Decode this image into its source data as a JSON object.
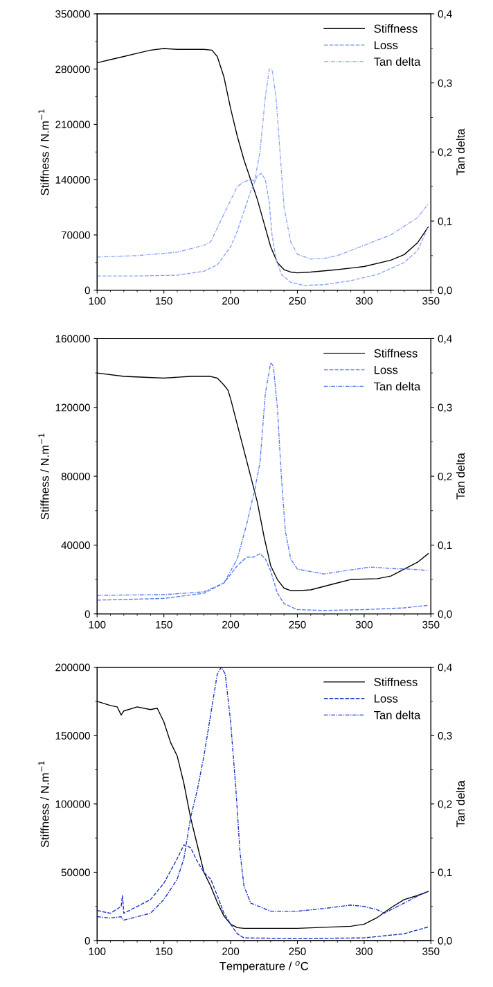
{
  "chart_data": [
    {
      "type": "line",
      "ylabel": "Stiffness / N.m$^{−1}$",
      "y2label": "Tan delta",
      "xlim": [
        100,
        350
      ],
      "xticks": [
        100,
        150,
        200,
        250,
        300,
        350
      ],
      "ylim": [
        0,
        350000
      ],
      "yticks": [
        0,
        70000,
        140000,
        210000,
        280000,
        350000
      ],
      "y2lim": [
        0,
        0.4
      ],
      "y2ticks": [
        {
          "value": 0,
          "label": "0,0"
        },
        {
          "value": 0.1,
          "label": "0,1"
        },
        {
          "value": 0.2,
          "label": "0,2"
        },
        {
          "value": 0.3,
          "label": "0,3"
        },
        {
          "value": 0.4,
          "label": "0,4"
        }
      ],
      "legend": "top right",
      "grid": false,
      "series": [
        {
          "name": "Stiffness",
          "color": "#000000",
          "line_style": "solid",
          "x": [
            100,
            110,
            120,
            130,
            140,
            150,
            160,
            170,
            180,
            186,
            190,
            195,
            200,
            205,
            210,
            215,
            220,
            225,
            230,
            235,
            240,
            245,
            250,
            260,
            280,
            300,
            320,
            330,
            340,
            348
          ],
          "values": [
            288000,
            292000,
            296000,
            300000,
            304000,
            306000,
            305000,
            305000,
            305000,
            304000,
            296000,
            270000,
            230000,
            195000,
            165000,
            140000,
            115000,
            85000,
            55000,
            35000,
            26000,
            23000,
            22000,
            23000,
            26000,
            30000,
            38000,
            45000,
            60000,
            80000
          ]
        },
        {
          "name": "Loss",
          "color": "#8ea4f5",
          "line_style": "dashed",
          "x": [
            100,
            130,
            160,
            180,
            190,
            200,
            205,
            210,
            215,
            220,
            223,
            226,
            229,
            231,
            234,
            238,
            245,
            255,
            270,
            290,
            310,
            330,
            340,
            348
          ],
          "values": [
            18000,
            18000,
            19000,
            24000,
            32000,
            55000,
            75000,
            100000,
            125000,
            145000,
            148000,
            140000,
            110000,
            70000,
            40000,
            20000,
            10000,
            6000,
            7000,
            12000,
            20000,
            35000,
            50000,
            80000
          ]
        },
        {
          "name": "Tan delta",
          "color": "#8ea4f5",
          "line_style": "dashdot",
          "axis": "y2",
          "x": [
            100,
            130,
            160,
            180,
            185,
            190,
            195,
            200,
            205,
            210,
            215,
            218,
            222,
            226,
            229,
            231,
            234,
            237,
            240,
            245,
            250,
            260,
            270,
            280,
            300,
            320,
            340,
            348
          ],
          "values": [
            0.048,
            0.05,
            0.055,
            0.065,
            0.07,
            0.09,
            0.11,
            0.13,
            0.15,
            0.157,
            0.16,
            0.158,
            0.2,
            0.28,
            0.32,
            0.32,
            0.28,
            0.2,
            0.12,
            0.07,
            0.052,
            0.045,
            0.046,
            0.05,
            0.065,
            0.08,
            0.105,
            0.125
          ]
        }
      ]
    },
    {
      "type": "line",
      "ylabel": "Stiffness / N.m$^{−1}$",
      "y2label": "Tan delta",
      "xlim": [
        100,
        350
      ],
      "xticks": [
        100,
        150,
        200,
        250,
        300,
        350
      ],
      "ylim": [
        0,
        160000
      ],
      "yticks": [
        0,
        40000,
        80000,
        120000,
        160000
      ],
      "y2lim": [
        0,
        0.4
      ],
      "y2ticks": [
        {
          "value": 0,
          "label": "0,0"
        },
        {
          "value": 0.1,
          "label": "0,1"
        },
        {
          "value": 0.2,
          "label": "0,2"
        },
        {
          "value": 0.3,
          "label": "0,3"
        },
        {
          "value": 0.4,
          "label": "0,4"
        }
      ],
      "legend": "top right",
      "grid": false,
      "series": [
        {
          "name": "Stiffness",
          "color": "#000000",
          "line_style": "solid",
          "x": [
            100,
            120,
            150,
            170,
            185,
            190,
            195,
            198,
            200,
            205,
            210,
            215,
            220,
            225,
            230,
            235,
            240,
            245,
            250,
            260,
            280,
            290,
            310,
            320,
            330,
            340,
            348
          ],
          "values": [
            140000,
            138000,
            137000,
            138000,
            138000,
            137000,
            133000,
            130000,
            125000,
            110000,
            95000,
            80000,
            65000,
            45000,
            28000,
            20000,
            15000,
            13500,
            13500,
            14000,
            18000,
            20000,
            20500,
            22000,
            26000,
            30000,
            35000
          ]
        },
        {
          "name": "Loss",
          "color": "#5a7af0",
          "line_style": "dashed",
          "x": [
            100,
            150,
            180,
            195,
            205,
            212,
            217,
            222,
            226,
            230,
            235,
            240,
            250,
            270,
            300,
            330,
            348
          ],
          "values": [
            8000,
            9000,
            12000,
            18000,
            28000,
            33000,
            33000,
            35000,
            32000,
            25000,
            12000,
            6000,
            2500,
            2000,
            2500,
            3500,
            5000
          ]
        },
        {
          "name": "Tan delta",
          "color": "#5a7af0",
          "line_style": "dashdot",
          "axis": "y2",
          "x": [
            100,
            150,
            180,
            195,
            205,
            212,
            218,
            222,
            226,
            230,
            232,
            235,
            238,
            241,
            245,
            250,
            270,
            290,
            305,
            320,
            335,
            348
          ],
          "values": [
            0.027,
            0.028,
            0.032,
            0.045,
            0.08,
            0.13,
            0.18,
            0.22,
            0.32,
            0.365,
            0.36,
            0.3,
            0.2,
            0.12,
            0.08,
            0.065,
            0.058,
            0.064,
            0.068,
            0.066,
            0.065,
            0.063
          ]
        }
      ]
    },
    {
      "type": "line",
      "xlabel": "Temperature / $^{o}$C",
      "ylabel": "Stiffness / N.m$^{−1}$",
      "y2label": "Tan delta",
      "xlim": [
        100,
        350
      ],
      "xticks": [
        100,
        150,
        200,
        250,
        300,
        350
      ],
      "ylim": [
        0,
        200000
      ],
      "yticks": [
        0,
        50000,
        100000,
        150000,
        200000
      ],
      "y2lim": [
        0,
        0.4
      ],
      "y2ticks": [
        {
          "value": 0,
          "label": "0,0"
        },
        {
          "value": 0.1,
          "label": "0,1"
        },
        {
          "value": 0.2,
          "label": "0,2"
        },
        {
          "value": 0.3,
          "label": "0,3"
        },
        {
          "value": 0.4,
          "label": "0,4"
        }
      ],
      "legend": "top right",
      "grid": false,
      "series": [
        {
          "name": "Stiffness",
          "color": "#000000",
          "line_style": "solid",
          "x": [
            100,
            110,
            115,
            118,
            120,
            130,
            140,
            145,
            150,
            155,
            160,
            165,
            170,
            175,
            180,
            185,
            190,
            195,
            200,
            205,
            210,
            250,
            290,
            300,
            310,
            320,
            330,
            340,
            348
          ],
          "values": [
            175000,
            172000,
            171000,
            165000,
            168000,
            171000,
            169000,
            170000,
            160000,
            145000,
            135000,
            115000,
            90000,
            70000,
            50000,
            40000,
            28000,
            18000,
            12000,
            9500,
            9000,
            9000,
            10500,
            12000,
            17000,
            24000,
            30000,
            33000,
            36000
          ]
        },
        {
          "name": "Loss",
          "color": "#1a30c8",
          "line_style": "dashed",
          "x": [
            100,
            110,
            118,
            119,
            120,
            130,
            140,
            150,
            160,
            165,
            170,
            175,
            180,
            185,
            190,
            195,
            200,
            205,
            210,
            250,
            300,
            330,
            348
          ],
          "values": [
            22000,
            20000,
            25000,
            33000,
            20000,
            25000,
            30000,
            42000,
            60000,
            70000,
            68000,
            58000,
            50000,
            45000,
            33000,
            20000,
            12000,
            5000,
            2000,
            1500,
            2000,
            5000,
            10000
          ]
        },
        {
          "name": "Tan delta",
          "color": "#1a30c8",
          "line_style": "dashdot",
          "axis": "y2",
          "x": [
            100,
            110,
            118,
            120,
            130,
            140,
            150,
            160,
            165,
            170,
            175,
            180,
            185,
            190,
            193,
            196,
            200,
            204,
            207,
            210,
            215,
            230,
            250,
            270,
            290,
            300,
            310,
            315,
            320,
            330,
            340,
            348
          ],
          "values": [
            0.035,
            0.033,
            0.035,
            0.03,
            0.035,
            0.04,
            0.06,
            0.09,
            0.12,
            0.18,
            0.22,
            0.27,
            0.33,
            0.39,
            0.4,
            0.39,
            0.32,
            0.22,
            0.13,
            0.08,
            0.055,
            0.043,
            0.043,
            0.047,
            0.052,
            0.05,
            0.045,
            0.04,
            0.045,
            0.055,
            0.065,
            0.072
          ]
        }
      ]
    }
  ]
}
